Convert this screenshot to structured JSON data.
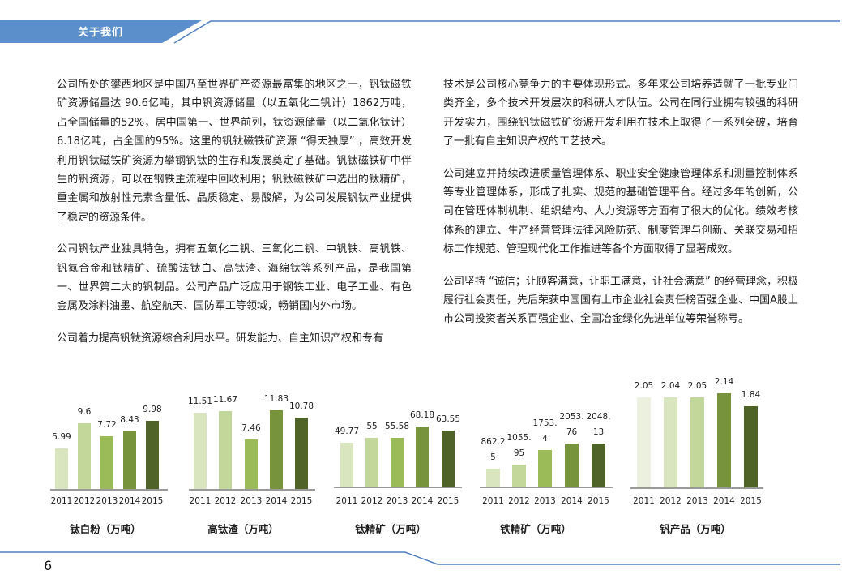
{
  "header": {
    "section_title": "关于我们",
    "accent_color": "#5b8fcc",
    "line_color": "#4f7fbf"
  },
  "left_column": {
    "paragraphs": [
      " 公司所处的攀西地区是中国乃至世界矿产资源最富集的地区之一，钒钛磁铁矿资源储量达  90.6亿吨，其中钒资源储量（以五氧化二钒计）1862万吨，占全国储量的52%，居中国第一、世界前列，钛资源储量（以二氧化钛计）6.18亿吨，占全国的95%。这里的钒钛磁铁矿资源 “得天独厚” ，高效开发利用钒钛磁铁矿资源为攀钢钒钛的生存和发展奠定了基础。钒钛磁铁矿中伴生的钒资源，可以在钢铁主流程中回收利用；钒钛磁铁矿中选出的钛精矿，重金属和放射性元素含量低、品质稳定、易酸解，为公司发展钒钛产业提供了稳定的资源条件。",
      "公司钒钛产业独具特色，拥有五氧化二钒、三氧化二钒、中钒铁、高钒铁、钒氮合金和钛精矿、硫酸法钛白、高钛渣、海绵钛等系列产品，是我国第一、世界第二大的钒制品。公司产品广泛应用于钢铁工业、电子工业、有色金属及涂料油墨、航空航天、国防军工等领域，畅销国内外市场。",
      "公司着力提高钒钛资源综合利用水平。研发能力、自主知识产权和专有"
    ]
  },
  "right_column": {
    "paragraphs": [
      "技术是公司核心竞争力的主要体现形式。多年来公司培养造就了一批专业门类齐全，多个技术开发层次的科研人才队伍。公司在同行业拥有较强的科研开发实力，围绕钒钛磁铁矿资源开发利用在技术上取得了一系列突破，培育了一批有自主知识产权的工艺技术。",
      "公司建立并持续改进质量管理体系、职业安全健康管理体系和测量控制体系等专业管理体系，形成了扎实、规范的基础管理平台。经过多年的创新，公司在管理体制机制、组织结构、人力资源等方面有了很大的优化。绩效考核体系的建立、生产经营管理法律风险防范、制度管理与创新、关联交易和招标工作规范、管理现代化工作推进等各个方面取得了显著成效。",
      "公司坚持 “诚信；让顾客满意，让职工满意，让社会满意” 的经营理念，积极履行社会责任，先后荣获中国国有上市企业社会责任榜百强企业、中国A股上市公司投资者关系百强企业、全国冶金绿化先进单位等荣誉称号。"
    ]
  },
  "chart_colors": [
    "#d9e5bf",
    "#c4d79b",
    "#9bbb59",
    "#77933c",
    "#4f6228"
  ],
  "chart_data": [
    {
      "type": "bar",
      "title": "钛白粉（万吨）",
      "categories": [
        "2011",
        "2012",
        "2013",
        "2014",
        "2015"
      ],
      "values": [
        5.99,
        9.6,
        7.72,
        8.43,
        9.98
      ],
      "labels": [
        "5.99",
        "9.6",
        "7.72",
        "8.43",
        "9.98"
      ],
      "xlabel": "",
      "ylabel": "",
      "grid": false,
      "legend": "none"
    },
    {
      "type": "bar",
      "title": "高钛渣（万吨）",
      "categories": [
        "2011",
        "2012",
        "2013",
        "2014",
        "2015"
      ],
      "values": [
        11.51,
        11.67,
        7.46,
        11.83,
        10.78
      ],
      "labels": [
        "11.51",
        "11.67",
        "7.46",
        "11.83",
        "10.78"
      ],
      "xlabel": "",
      "ylabel": "",
      "grid": false,
      "legend": "none"
    },
    {
      "type": "bar",
      "title": "钛精矿（万吨）",
      "categories": [
        "2011",
        "2012",
        "2013",
        "2014",
        "2015"
      ],
      "values": [
        49.77,
        55,
        55.58,
        68.18,
        63.55
      ],
      "labels": [
        "49.77",
        "55",
        "55.58",
        "68.18",
        "63.55"
      ],
      "xlabel": "",
      "ylabel": "",
      "grid": false,
      "legend": "none"
    },
    {
      "type": "bar",
      "title": "铁精矿（万吨）",
      "categories": [
        "2011",
        "2012",
        "2013",
        "2014",
        "2015"
      ],
      "values": [
        862.25,
        1055.95,
        1753.4,
        2053.76,
        2048.13
      ],
      "labels": [
        "862.2\n5",
        "1055.\n95",
        "1753.\n4",
        "2053.\n76",
        "2048.\n13"
      ],
      "xlabel": "",
      "ylabel": "",
      "grid": false,
      "legend": "none"
    },
    {
      "type": "bar",
      "title": "钒产品（万吨）",
      "categories": [
        "2011",
        "2012",
        "2013",
        "2014",
        "2015"
      ],
      "values": [
        2.05,
        2.04,
        2.05,
        2.14,
        1.84
      ],
      "labels": [
        "2.05",
        "2.04",
        "2.05",
        "2.14",
        "1.84"
      ],
      "colors": [
        "#ebf1de",
        "#d9e5bf",
        "#c4d79b",
        "#77933c",
        "#4f6228"
      ],
      "xlabel": "",
      "ylabel": "",
      "grid": false,
      "legend": "none"
    }
  ],
  "footer": {
    "page_number": "6"
  }
}
